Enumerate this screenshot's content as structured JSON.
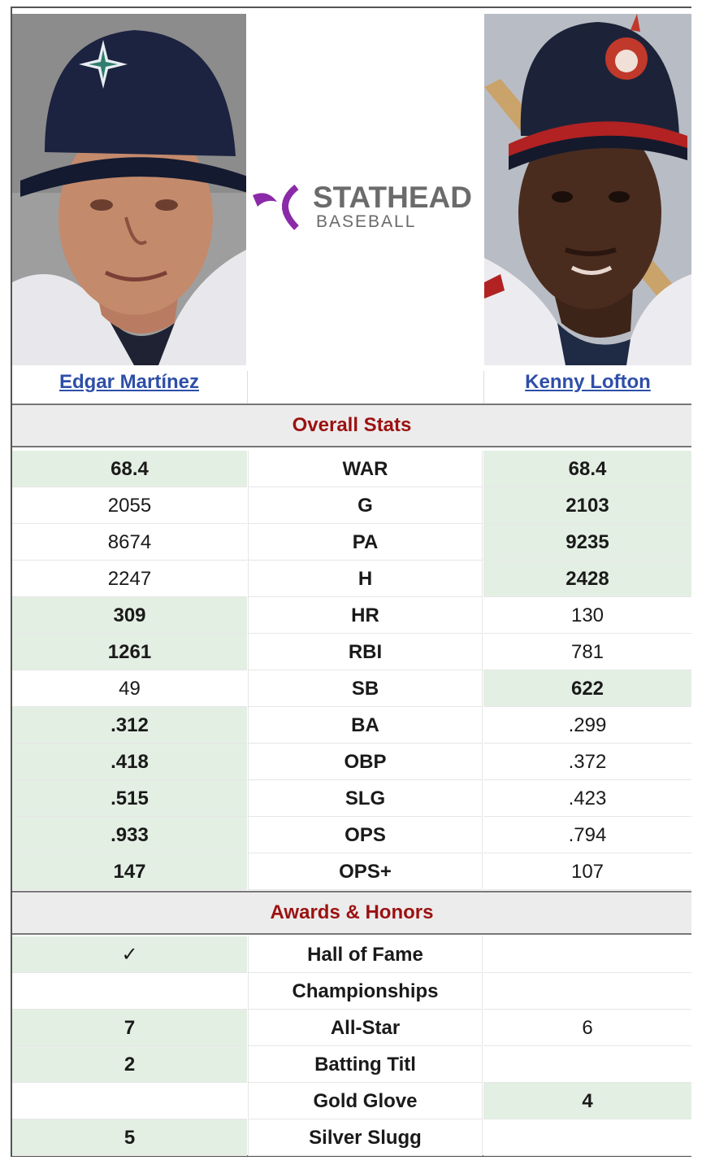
{
  "players": {
    "left": {
      "name": "Edgar Martínez"
    },
    "right": {
      "name": "Kenny Lofton"
    }
  },
  "logo": {
    "line1": "STATHEAD",
    "line2": "BASEBALL"
  },
  "colors": {
    "link": "#2e4fa8",
    "section_title": "#9c1111",
    "winner_bg": "#e4efe4",
    "section_bg": "#ececec"
  },
  "sections": {
    "overall": {
      "title": "Overall Stats"
    },
    "awards": {
      "title": "Awards & Honors"
    }
  },
  "overall_rows": [
    {
      "stat": "WAR",
      "left": "68.4",
      "right": "68.4",
      "left_win": true,
      "right_win": true
    },
    {
      "stat": "G",
      "left": "2055",
      "right": "2103",
      "left_win": false,
      "right_win": true
    },
    {
      "stat": "PA",
      "left": "8674",
      "right": "9235",
      "left_win": false,
      "right_win": true
    },
    {
      "stat": "H",
      "left": "2247",
      "right": "2428",
      "left_win": false,
      "right_win": true
    },
    {
      "stat": "HR",
      "left": "309",
      "right": "130",
      "left_win": true,
      "right_win": false
    },
    {
      "stat": "RBI",
      "left": "1261",
      "right": "781",
      "left_win": true,
      "right_win": false
    },
    {
      "stat": "SB",
      "left": "49",
      "right": "622",
      "left_win": false,
      "right_win": true
    },
    {
      "stat": "BA",
      "left": ".312",
      "right": ".299",
      "left_win": true,
      "right_win": false
    },
    {
      "stat": "OBP",
      "left": ".418",
      "right": ".372",
      "left_win": true,
      "right_win": false
    },
    {
      "stat": "SLG",
      "left": ".515",
      "right": ".423",
      "left_win": true,
      "right_win": false
    },
    {
      "stat": "OPS",
      "left": ".933",
      "right": ".794",
      "left_win": true,
      "right_win": false
    },
    {
      "stat": "OPS+",
      "left": "147",
      "right": "107",
      "left_win": true,
      "right_win": false
    }
  ],
  "award_rows": [
    {
      "stat": "Hall of Fame",
      "left": "✓",
      "right": "",
      "left_win": true,
      "right_win": false
    },
    {
      "stat": "Championships",
      "left": "",
      "right": "",
      "left_win": false,
      "right_win": false
    },
    {
      "stat": "All-Star",
      "left": "7",
      "right": "6",
      "left_win": true,
      "right_win": false
    },
    {
      "stat": "Batting Titl",
      "left": "2",
      "right": "",
      "left_win": true,
      "right_win": false
    },
    {
      "stat": "Gold Glove",
      "left": "",
      "right": "4",
      "left_win": false,
      "right_win": true
    },
    {
      "stat": "Silver Slugg",
      "left": "5",
      "right": "",
      "left_win": true,
      "right_win": false
    }
  ]
}
